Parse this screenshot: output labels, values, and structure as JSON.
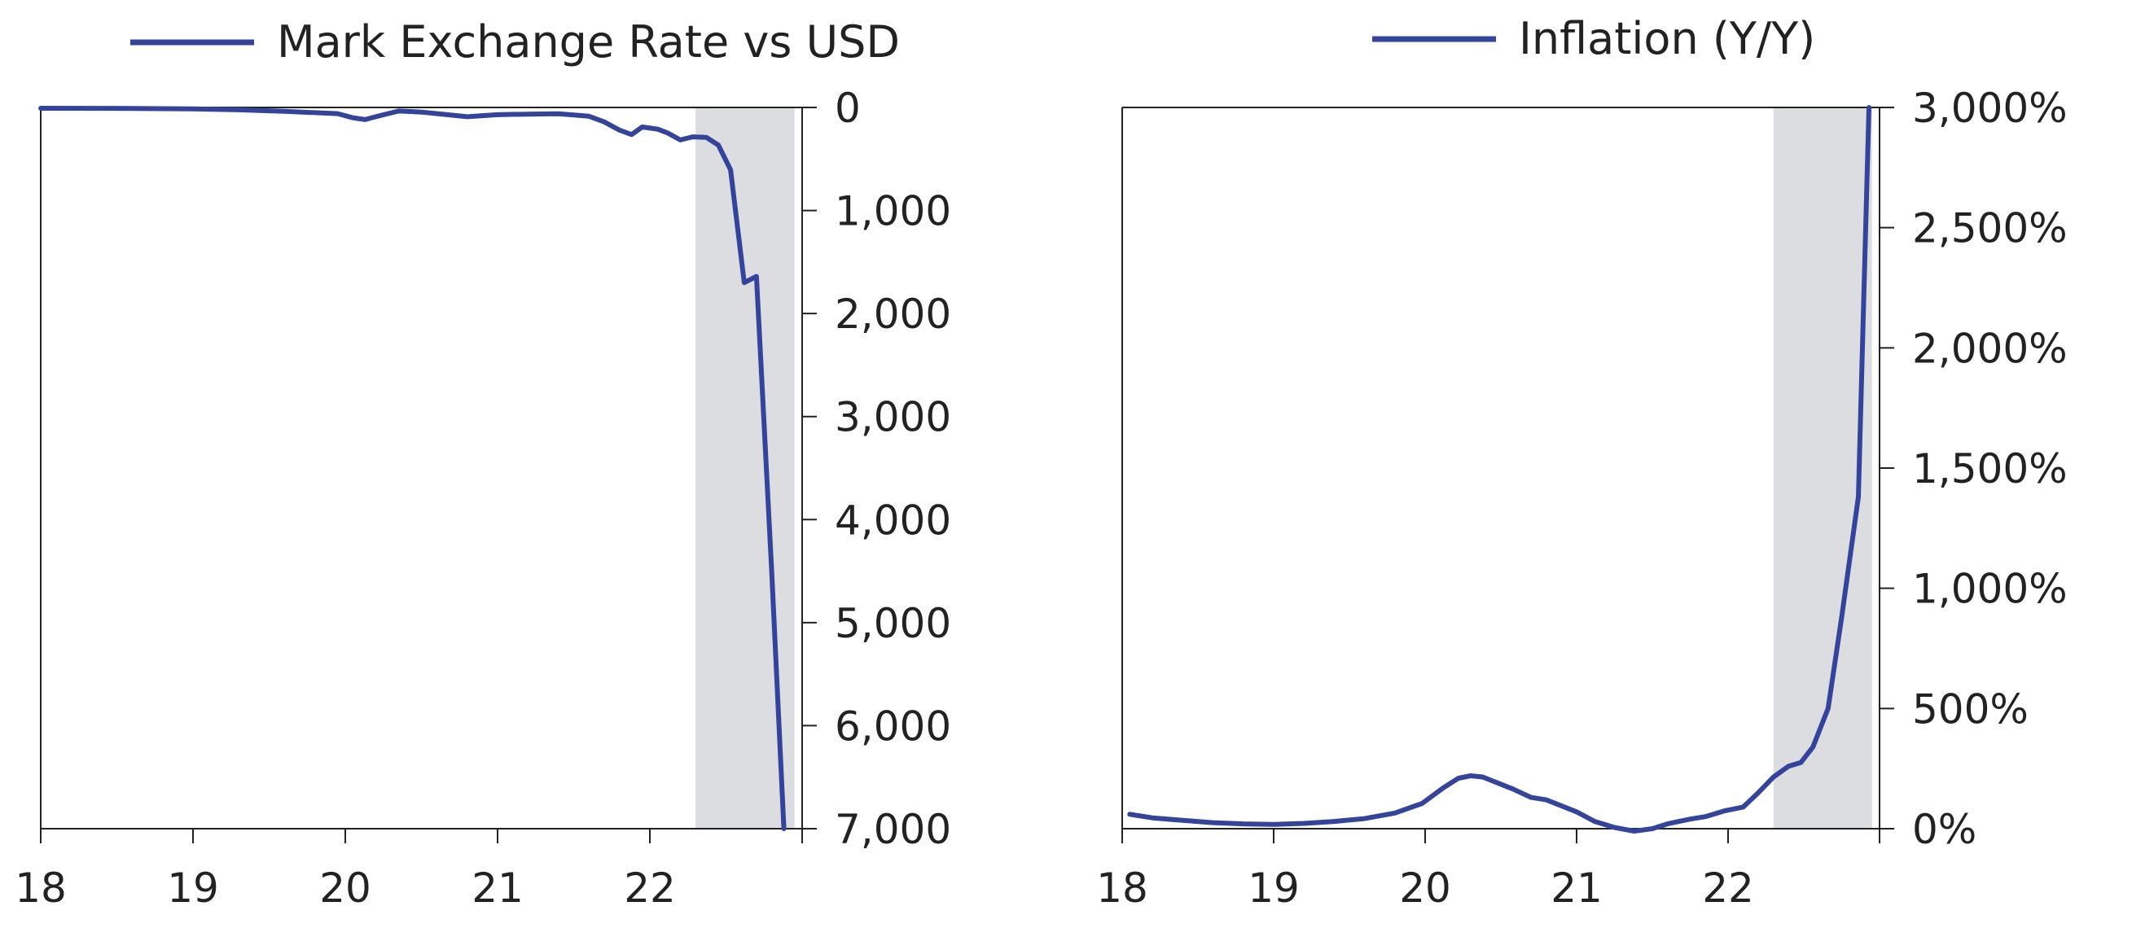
{
  "colors": {
    "series": "#34449a",
    "shade": "#dcdde0",
    "axis": "#222222",
    "background": "#ffffff"
  },
  "chart_data": [
    {
      "type": "line",
      "title": "",
      "xlabel": "",
      "ylabel": "",
      "y_axis_inverted": true,
      "y_axis_side": "right",
      "grid": false,
      "legend": "top-center",
      "xlim": [
        18,
        23
      ],
      "ylim": [
        0,
        7000
      ],
      "x_ticks": [
        "18",
        "19",
        "20",
        "21",
        "22"
      ],
      "y_ticks": [
        "0",
        "1,000",
        "2,000",
        "3,000",
        "4,000",
        "5,000",
        "6,000",
        "7,000"
      ],
      "shaded_region": [
        22.3,
        22.95
      ],
      "series": [
        {
          "name": "Mark Exchange Rate vs USD",
          "x": [
            18.0,
            18.5,
            19.0,
            19.3,
            19.6,
            19.95,
            20.05,
            20.13,
            20.2,
            20.35,
            20.5,
            20.65,
            20.8,
            21.0,
            21.2,
            21.4,
            21.6,
            21.7,
            21.8,
            21.88,
            21.95,
            22.05,
            22.12,
            22.2,
            22.28,
            22.37,
            22.45,
            22.53,
            22.62,
            22.7,
            22.8,
            22.88
          ],
          "y": [
            8,
            9,
            14,
            23,
            38,
            60,
            100,
            118,
            90,
            35,
            45,
            67,
            90,
            70,
            65,
            62,
            85,
            140,
            220,
            263,
            190,
            210,
            250,
            315,
            285,
            290,
            365,
            605,
            1700,
            1640,
            4500,
            7000
          ]
        }
      ]
    },
    {
      "type": "line",
      "title": "",
      "xlabel": "",
      "ylabel": "",
      "y_axis_side": "right",
      "grid": false,
      "legend": "top-center",
      "xlim": [
        18,
        23
      ],
      "ylim": [
        0,
        3000
      ],
      "x_ticks": [
        "18",
        "19",
        "20",
        "21",
        "22"
      ],
      "y_ticks": [
        "0%",
        "500%",
        "1,000%",
        "1,500%",
        "2,000%",
        "2,500%",
        "3,000%"
      ],
      "y_tick_values": [
        0,
        500,
        1000,
        1500,
        2000,
        2500,
        3000
      ],
      "shaded_region": [
        22.3,
        22.95
      ],
      "series": [
        {
          "name": "Inflation (Y/Y)",
          "x": [
            18.05,
            18.2,
            18.4,
            18.6,
            18.8,
            19.0,
            19.2,
            19.4,
            19.6,
            19.8,
            19.98,
            20.12,
            20.22,
            20.3,
            20.38,
            20.48,
            20.58,
            20.7,
            20.8,
            20.9,
            21.0,
            21.12,
            21.25,
            21.38,
            21.5,
            21.6,
            21.75,
            21.85,
            21.98,
            22.1,
            22.2,
            22.3,
            22.4,
            22.48,
            22.56,
            22.66,
            22.75,
            22.86,
            22.93
          ],
          "y": [
            60,
            45,
            35,
            25,
            20,
            18,
            22,
            30,
            42,
            65,
            105,
            170,
            210,
            220,
            215,
            190,
            165,
            130,
            120,
            95,
            70,
            30,
            5,
            -10,
            0,
            20,
            40,
            50,
            75,
            90,
            150,
            215,
            260,
            275,
            340,
            500,
            880,
            1380,
            3000
          ]
        }
      ]
    }
  ]
}
